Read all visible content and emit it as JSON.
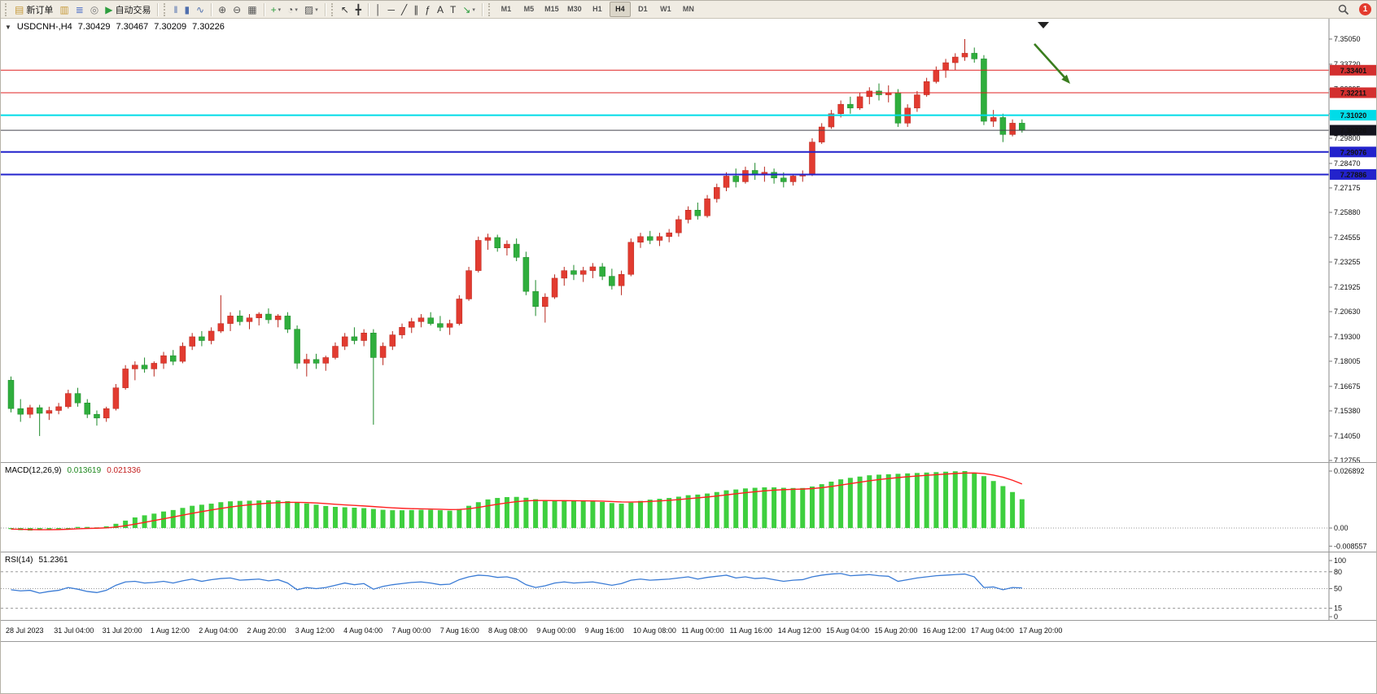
{
  "toolbar": {
    "notification_count": "1",
    "active_timeframe": "H4",
    "items": [
      {
        "kind": "grip"
      },
      {
        "kind": "labeled",
        "name": "new-order-button",
        "glyph": "▤",
        "gc": "#c79a3b",
        "label": "新订单"
      },
      {
        "kind": "icon",
        "name": "market-watch-button",
        "glyph": "▥",
        "gc": "#c79a3b"
      },
      {
        "kind": "icon",
        "name": "data-window-button",
        "glyph": "≣",
        "gc": "#5b79c9"
      },
      {
        "kind": "icon",
        "name": "navigator-button",
        "glyph": "◎",
        "gc": "#7a7a7a"
      },
      {
        "kind": "labeled",
        "name": "autotrading-button",
        "glyph": "▶",
        "gc": "#2e9e3f",
        "label": "自动交易"
      },
      {
        "kind": "sep"
      },
      {
        "kind": "grip"
      },
      {
        "kind": "icon",
        "name": "bar-chart-button",
        "glyph": "‖",
        "gc": "#4f6fae"
      },
      {
        "kind": "icon",
        "name": "candlestick-chart-button",
        "glyph": "▮",
        "gc": "#4f6fae"
      },
      {
        "kind": "icon",
        "name": "line-chart-button",
        "glyph": "∿",
        "gc": "#4f6fae"
      },
      {
        "kind": "sep"
      },
      {
        "kind": "icon",
        "name": "zoom-in-button",
        "glyph": "⊕",
        "gc": "#555555"
      },
      {
        "kind": "icon",
        "name": "zoom-out-button",
        "glyph": "⊖",
        "gc": "#555555"
      },
      {
        "kind": "icon",
        "name": "tile-windows-button",
        "glyph": "▦",
        "gc": "#555555"
      },
      {
        "kind": "sep"
      },
      {
        "kind": "dropdown",
        "name": "indicators-button",
        "glyph": "+",
        "gc": "#2e9e3f"
      },
      {
        "kind": "dropdown",
        "name": "periods-button",
        "glyph": "◔",
        "gc": "#555555"
      },
      {
        "kind": "dropdown",
        "name": "templates-button",
        "glyph": "▨",
        "gc": "#555555"
      },
      {
        "kind": "sep"
      },
      {
        "kind": "grip"
      },
      {
        "kind": "icon",
        "name": "cursor-button",
        "glyph": "↖",
        "gc": "#333333"
      },
      {
        "kind": "icon",
        "name": "crosshair-button",
        "glyph": "╋",
        "gc": "#333333"
      },
      {
        "kind": "sep"
      },
      {
        "kind": "icon",
        "name": "vertical-line-button",
        "glyph": "│",
        "gc": "#333333"
      },
      {
        "kind": "icon",
        "name": "horizontal-line-button",
        "glyph": "─",
        "gc": "#333333"
      },
      {
        "kind": "icon",
        "name": "trendline-button",
        "glyph": "╱",
        "gc": "#333333"
      },
      {
        "kind": "icon",
        "name": "channel-button",
        "glyph": "∥",
        "gc": "#333333"
      },
      {
        "kind": "icon",
        "name": "fibonacci-button",
        "glyph": "ƒ",
        "gc": "#333333"
      },
      {
        "kind": "icon",
        "name": "text-button",
        "glyph": "A",
        "gc": "#333333"
      },
      {
        "kind": "icon",
        "name": "label-button",
        "glyph": "T",
        "gc": "#333333"
      },
      {
        "kind": "dropdown",
        "name": "arrows-button",
        "glyph": "↘",
        "gc": "#2e9e3f"
      },
      {
        "kind": "sep"
      },
      {
        "kind": "grip"
      },
      {
        "kind": "tf",
        "label": "M1"
      },
      {
        "kind": "tf",
        "label": "M5"
      },
      {
        "kind": "tf",
        "label": "M15"
      },
      {
        "kind": "tf",
        "label": "M30"
      },
      {
        "kind": "tf",
        "label": "H1"
      },
      {
        "kind": "tf",
        "label": "H4"
      },
      {
        "kind": "tf",
        "label": "D1"
      },
      {
        "kind": "tf",
        "label": "W1"
      },
      {
        "kind": "tf",
        "label": "MN"
      }
    ]
  },
  "chart_data": {
    "type": "candlestick",
    "symbol_line": {
      "collapse_icon": "▼",
      "symbol": "USDCNH-,H4",
      "open": "7.30429",
      "high": "7.30467",
      "low": "7.30209",
      "close": "7.30226"
    },
    "colors": {
      "up": "#e23b30",
      "up_stroke": "#b8271d",
      "down": "#2fae3d",
      "down_stroke": "#1d8a2a",
      "macd_hist": "#3ecf3e",
      "macd_signal": "#ff2020",
      "rsi_line": "#3a7bd5",
      "level_red": "#e02020",
      "level_cyan": "#00dce8",
      "level_blue": "#2222cc",
      "current_line": "#44444e",
      "arrow": "#3a7d1e"
    },
    "price_axis": {
      "ticks": [
        "7.35050",
        "7.33720",
        "7.32395",
        "7.31095",
        "7.29800",
        "7.28470",
        "7.27175",
        "7.25880",
        "7.24555",
        "7.23255",
        "7.21925",
        "7.20630",
        "7.19300",
        "7.18005",
        "7.16675",
        "7.15380",
        "7.14050",
        "7.12755"
      ]
    },
    "levels": [
      {
        "name": "resistance-line-upper",
        "price": 7.33401,
        "label": "7.33401",
        "color": "#e02020",
        "badge_bg": "#d32f2f",
        "badge_fg": "#ffffff",
        "width": 1
      },
      {
        "name": "resistance-line-lower",
        "price": 7.32211,
        "label": "7.32211",
        "color": "#e02020",
        "badge_bg": "#d32f2f",
        "badge_fg": "#ffffff",
        "width": 1
      },
      {
        "name": "pivot-line-cyan",
        "price": 7.3102,
        "label": "7.31020",
        "color": "#00dce8",
        "badge_bg": "#00dce8",
        "badge_fg": "#00333a",
        "width": 2
      },
      {
        "name": "current-price-line",
        "price": 7.30226,
        "label": "7.30226",
        "color": "#44444e",
        "badge_bg": "#14141e",
        "badge_fg": "#ffffff",
        "width": 1
      },
      {
        "name": "support-line-upper",
        "price": 7.29076,
        "label": "7.29076",
        "color": "#2222cc",
        "badge_bg": "#2222cc",
        "badge_fg": "#ffffff",
        "width": 2
      },
      {
        "name": "support-line-lower",
        "price": 7.27886,
        "label": "7.27886",
        "color": "#2222cc",
        "badge_bg": "#2222cc",
        "badge_fg": "#ffffff",
        "width": 2
      }
    ],
    "candles": [
      [
        7.17,
        7.172,
        7.153,
        7.155
      ],
      [
        7.155,
        7.16,
        7.148,
        7.152
      ],
      [
        7.152,
        7.157,
        7.15,
        7.1555
      ],
      [
        7.1555,
        7.157,
        7.1405,
        7.1525
      ],
      [
        7.1525,
        7.156,
        7.149,
        7.154
      ],
      [
        7.154,
        7.158,
        7.152,
        7.156
      ],
      [
        7.156,
        7.165,
        7.155,
        7.163
      ],
      [
        7.163,
        7.166,
        7.156,
        7.158
      ],
      [
        7.158,
        7.16,
        7.15,
        7.152
      ],
      [
        7.152,
        7.154,
        7.146,
        7.15
      ],
      [
        7.15,
        7.156,
        7.148,
        7.155
      ],
      [
        7.155,
        7.168,
        7.154,
        7.166
      ],
      [
        7.166,
        7.178,
        7.165,
        7.176
      ],
      [
        7.176,
        7.18,
        7.17,
        7.178
      ],
      [
        7.178,
        7.182,
        7.174,
        7.176
      ],
      [
        7.176,
        7.18,
        7.172,
        7.179
      ],
      [
        7.179,
        7.185,
        7.176,
        7.183
      ],
      [
        7.183,
        7.186,
        7.178,
        7.18
      ],
      [
        7.18,
        7.19,
        7.179,
        7.188
      ],
      [
        7.188,
        7.195,
        7.186,
        7.193
      ],
      [
        7.193,
        7.196,
        7.188,
        7.191
      ],
      [
        7.191,
        7.198,
        7.189,
        7.196
      ],
      [
        7.196,
        7.215,
        7.195,
        7.2
      ],
      [
        7.2,
        7.206,
        7.196,
        7.204
      ],
      [
        7.204,
        7.207,
        7.199,
        7.201
      ],
      [
        7.201,
        7.205,
        7.197,
        7.203
      ],
      [
        7.203,
        7.206,
        7.199,
        7.205
      ],
      [
        7.205,
        7.208,
        7.2,
        7.202
      ],
      [
        7.202,
        7.205,
        7.198,
        7.204
      ],
      [
        7.204,
        7.206,
        7.195,
        7.197
      ],
      [
        7.197,
        7.199,
        7.176,
        7.179
      ],
      [
        7.179,
        7.184,
        7.172,
        7.181
      ],
      [
        7.181,
        7.184,
        7.176,
        7.179
      ],
      [
        7.179,
        7.183,
        7.175,
        7.182
      ],
      [
        7.182,
        7.19,
        7.181,
        7.188
      ],
      [
        7.188,
        7.195,
        7.186,
        7.193
      ],
      [
        7.193,
        7.198,
        7.189,
        7.191
      ],
      [
        7.191,
        7.197,
        7.188,
        7.195
      ],
      [
        7.195,
        7.197,
        7.1465,
        7.182
      ],
      [
        7.182,
        7.19,
        7.178,
        7.188
      ],
      [
        7.188,
        7.196,
        7.186,
        7.194
      ],
      [
        7.194,
        7.2,
        7.192,
        7.198
      ],
      [
        7.198,
        7.203,
        7.195,
        7.201
      ],
      [
        7.201,
        7.205,
        7.198,
        7.203
      ],
      [
        7.203,
        7.206,
        7.199,
        7.2
      ],
      [
        7.2,
        7.204,
        7.196,
        7.198
      ],
      [
        7.198,
        7.202,
        7.194,
        7.2
      ],
      [
        7.2,
        7.215,
        7.199,
        7.213
      ],
      [
        7.213,
        7.23,
        7.212,
        7.228
      ],
      [
        7.228,
        7.246,
        7.227,
        7.244
      ],
      [
        7.244,
        7.2475,
        7.239,
        7.2455
      ],
      [
        7.2455,
        7.247,
        7.238,
        7.24
      ],
      [
        7.24,
        7.244,
        7.236,
        7.242
      ],
      [
        7.242,
        7.245,
        7.233,
        7.235
      ],
      [
        7.235,
        7.238,
        7.215,
        7.217
      ],
      [
        7.217,
        7.223,
        7.204,
        7.209
      ],
      [
        7.209,
        7.216,
        7.2005,
        7.214
      ],
      [
        7.214,
        7.226,
        7.213,
        7.224
      ],
      [
        7.224,
        7.23,
        7.22,
        7.228
      ],
      [
        7.228,
        7.231,
        7.223,
        7.226
      ],
      [
        7.226,
        7.23,
        7.222,
        7.228
      ],
      [
        7.228,
        7.232,
        7.224,
        7.23
      ],
      [
        7.23,
        7.232,
        7.223,
        7.225
      ],
      [
        7.225,
        7.229,
        7.218,
        7.22
      ],
      [
        7.22,
        7.228,
        7.215,
        7.226
      ],
      [
        7.226,
        7.245,
        7.225,
        7.243
      ],
      [
        7.243,
        7.248,
        7.24,
        7.246
      ],
      [
        7.246,
        7.249,
        7.242,
        7.244
      ],
      [
        7.244,
        7.248,
        7.241,
        7.246
      ],
      [
        7.246,
        7.25,
        7.243,
        7.248
      ],
      [
        7.248,
        7.257,
        7.246,
        7.255
      ],
      [
        7.255,
        7.262,
        7.253,
        7.26
      ],
      [
        7.26,
        7.264,
        7.255,
        7.257
      ],
      [
        7.257,
        7.268,
        7.256,
        7.266
      ],
      [
        7.266,
        7.274,
        7.264,
        7.272
      ],
      [
        7.272,
        7.28,
        7.27,
        7.278
      ],
      [
        7.278,
        7.282,
        7.272,
        7.275
      ],
      [
        7.275,
        7.283,
        7.274,
        7.281
      ],
      [
        7.281,
        7.285,
        7.276,
        7.279
      ],
      [
        7.279,
        7.283,
        7.275,
        7.28
      ],
      [
        7.28,
        7.282,
        7.274,
        7.277
      ],
      [
        7.277,
        7.28,
        7.272,
        7.275
      ],
      [
        7.275,
        7.279,
        7.273,
        7.278
      ],
      [
        7.278,
        7.281,
        7.275,
        7.279
      ],
      [
        7.279,
        7.298,
        7.278,
        7.296
      ],
      [
        7.296,
        7.306,
        7.295,
        7.304
      ],
      [
        7.304,
        7.313,
        7.303,
        7.311
      ],
      [
        7.311,
        7.318,
        7.309,
        7.316
      ],
      [
        7.316,
        7.32,
        7.311,
        7.314
      ],
      [
        7.314,
        7.322,
        7.313,
        7.32
      ],
      [
        7.32,
        7.325,
        7.316,
        7.323
      ],
      [
        7.323,
        7.327,
        7.318,
        7.321
      ],
      [
        7.321,
        7.326,
        7.317,
        7.322
      ],
      [
        7.322,
        7.324,
        7.304,
        7.306
      ],
      [
        7.306,
        7.316,
        7.304,
        7.314
      ],
      [
        7.314,
        7.323,
        7.312,
        7.321
      ],
      [
        7.321,
        7.33,
        7.32,
        7.328
      ],
      [
        7.328,
        7.336,
        7.327,
        7.334
      ],
      [
        7.334,
        7.34,
        7.33,
        7.338
      ],
      [
        7.338,
        7.343,
        7.334,
        7.341
      ],
      [
        7.341,
        7.3505,
        7.339,
        7.343
      ],
      [
        7.343,
        7.346,
        7.338,
        7.34
      ],
      [
        7.34,
        7.342,
        7.305,
        7.307
      ],
      [
        7.307,
        7.313,
        7.304,
        7.309
      ],
      [
        7.309,
        7.311,
        7.296,
        7.3
      ],
      [
        7.3,
        7.308,
        7.299,
        7.306
      ],
      [
        7.306,
        7.308,
        7.301,
        7.30226
      ]
    ],
    "time_labels": [
      "28 Jul 2023",
      "31 Jul 04:00",
      "31 Jul 20:00",
      "1 Aug 12:00",
      "2 Aug 04:00",
      "2 Aug 20:00",
      "3 Aug 12:00",
      "4 Aug 04:00",
      "7 Aug 00:00",
      "7 Aug 16:00",
      "8 Aug 08:00",
      "9 Aug 00:00",
      "9 Aug 16:00",
      "10 Aug 08:00",
      "11 Aug 00:00",
      "11 Aug 16:00",
      "14 Aug 12:00",
      "15 Aug 04:00",
      "15 Aug 20:00",
      "16 Aug 12:00",
      "17 Aug 04:00",
      "17 Aug 20:00"
    ],
    "indicators": {
      "macd": {
        "name": "MACD(12,26,9)",
        "value_main": "0.013619",
        "value_signal": "0.021336",
        "scale_labels": [
          "0.026892",
          "0.00",
          "-0.008557"
        ],
        "scale_values": [
          0.026892,
          0,
          -0.008557
        ],
        "histogram": [
          -0.0005,
          -0.001,
          -0.0012,
          -0.001,
          -0.0008,
          -0.0005,
          0.0,
          0.0005,
          0.0005,
          0.0003,
          0.0008,
          0.002,
          0.0035,
          0.005,
          0.006,
          0.0068,
          0.0078,
          0.0085,
          0.0095,
          0.0105,
          0.011,
          0.0115,
          0.0122,
          0.0126,
          0.0128,
          0.0129,
          0.013,
          0.0131,
          0.013,
          0.0127,
          0.0122,
          0.0116,
          0.011,
          0.0104,
          0.01,
          0.0098,
          0.0096,
          0.0094,
          0.009,
          0.0086,
          0.0084,
          0.0084,
          0.0085,
          0.0086,
          0.0086,
          0.0084,
          0.0082,
          0.009,
          0.0105,
          0.0122,
          0.0135,
          0.0142,
          0.0146,
          0.0147,
          0.0143,
          0.0136,
          0.013,
          0.0128,
          0.0128,
          0.0128,
          0.0127,
          0.0126,
          0.0123,
          0.0118,
          0.0115,
          0.012,
          0.0128,
          0.0134,
          0.0138,
          0.0142,
          0.0148,
          0.0155,
          0.0158,
          0.0163,
          0.017,
          0.0178,
          0.0182,
          0.0187,
          0.019,
          0.0192,
          0.0192,
          0.019,
          0.0189,
          0.0189,
          0.0196,
          0.0207,
          0.0219,
          0.023,
          0.0237,
          0.0243,
          0.0249,
          0.0252,
          0.0254,
          0.0256,
          0.0258,
          0.026,
          0.0262,
          0.0264,
          0.0266,
          0.0268,
          0.0269,
          0.0262,
          0.0245,
          0.0222,
          0.0198,
          0.017,
          0.0136
        ]
      },
      "rsi": {
        "name": "RSI(14)",
        "value": "51.2361",
        "scale_labels": [
          "100",
          "80",
          "50",
          "15",
          "0"
        ],
        "scale_values": [
          100,
          80,
          50,
          15,
          0
        ],
        "level_lines": [
          80,
          50,
          15
        ],
        "range": [
          0,
          100
        ],
        "values": [
          48,
          46,
          47,
          42,
          45,
          47,
          52,
          49,
          45,
          43,
          47,
          56,
          62,
          63,
          60,
          61,
          63,
          60,
          64,
          67,
          63,
          66,
          68,
          69,
          65,
          66,
          67,
          64,
          66,
          60,
          48,
          52,
          50,
          52,
          56,
          60,
          57,
          59,
          49,
          54,
          57,
          59,
          61,
          62,
          60,
          57,
          58,
          66,
          71,
          74,
          73,
          70,
          71,
          67,
          57,
          52,
          55,
          60,
          62,
          60,
          61,
          62,
          59,
          56,
          59,
          65,
          67,
          65,
          66,
          67,
          69,
          71,
          67,
          70,
          72,
          74,
          69,
          71,
          68,
          69,
          66,
          63,
          65,
          66,
          71,
          74,
          76,
          77,
          73,
          74,
          75,
          73,
          72,
          63,
          66,
          69,
          71,
          73,
          74,
          75,
          76,
          71,
          52,
          53,
          48,
          52,
          51.24
        ]
      }
    },
    "annotation": {
      "type": "arrow",
      "color": "#3a7d1e"
    }
  }
}
